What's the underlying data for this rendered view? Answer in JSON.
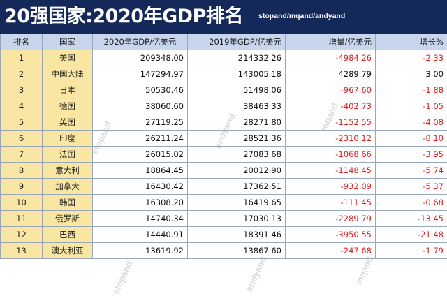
{
  "header": {
    "title": "20强国家:2020年GDP排名",
    "subtitle": "stopand/mqand/andyand"
  },
  "table": {
    "columns": [
      "排名",
      "国家",
      "2020年GDP/亿美元",
      "2019年GDP/亿美元",
      "增量/亿美元",
      "增长%"
    ],
    "rows": [
      {
        "rank": "1",
        "country": "美国",
        "gdp2020": "209348.00",
        "gdp2019": "214332.26",
        "delta": "-4984.26",
        "growth": "-2.33"
      },
      {
        "rank": "2",
        "country": "中国大陆",
        "gdp2020": "147294.97",
        "gdp2019": "143005.18",
        "delta": "4289.79",
        "growth": "3.00"
      },
      {
        "rank": "3",
        "country": "日本",
        "gdp2020": "50530.46",
        "gdp2019": "51498.06",
        "delta": "-967.60",
        "growth": "-1.88"
      },
      {
        "rank": "4",
        "country": "德国",
        "gdp2020": "38060.60",
        "gdp2019": "38463.33",
        "delta": "-402.73",
        "growth": "-1.05"
      },
      {
        "rank": "5",
        "country": "英国",
        "gdp2020": "27119.25",
        "gdp2019": "28271.80",
        "delta": "-1152.55",
        "growth": "-4.08"
      },
      {
        "rank": "6",
        "country": "印度",
        "gdp2020": "26211.24",
        "gdp2019": "28521.36",
        "delta": "-2310.12",
        "growth": "-8.10"
      },
      {
        "rank": "7",
        "country": "法国",
        "gdp2020": "26015.02",
        "gdp2019": "27083.68",
        "delta": "-1068.66",
        "growth": "-3.95"
      },
      {
        "rank": "8",
        "country": "意大利",
        "gdp2020": "18864.45",
        "gdp2019": "20012.90",
        "delta": "-1148.45",
        "growth": "-5.74"
      },
      {
        "rank": "9",
        "country": "加拿大",
        "gdp2020": "16430.42",
        "gdp2019": "17362.51",
        "delta": "-932.09",
        "growth": "-5.37"
      },
      {
        "rank": "10",
        "country": "韩国",
        "gdp2020": "16308.20",
        "gdp2019": "16419.65",
        "delta": "-111.45",
        "growth": "-0.68"
      },
      {
        "rank": "11",
        "country": "俄罗斯",
        "gdp2020": "14740.34",
        "gdp2019": "17030.13",
        "delta": "-2289.79",
        "growth": "-13.45"
      },
      {
        "rank": "12",
        "country": "巴西",
        "gdp2020": "14440.91",
        "gdp2019": "18391.46",
        "delta": "-3950.55",
        "growth": "-21.48"
      },
      {
        "rank": "13",
        "country": "澳大利亚",
        "gdp2020": "13619.92",
        "gdp2019": "13867.60",
        "delta": "-247.68",
        "growth": "-1.79"
      }
    ]
  },
  "watermarks": [
    "stopand",
    "andyand",
    "mqand",
    "stopand",
    "andyand",
    "mqand"
  ],
  "colors": {
    "title_bg": "#14285a",
    "header_bg": "#c7d6ec",
    "rank_bg": "#f9e6a2",
    "negative": "#e02020"
  }
}
